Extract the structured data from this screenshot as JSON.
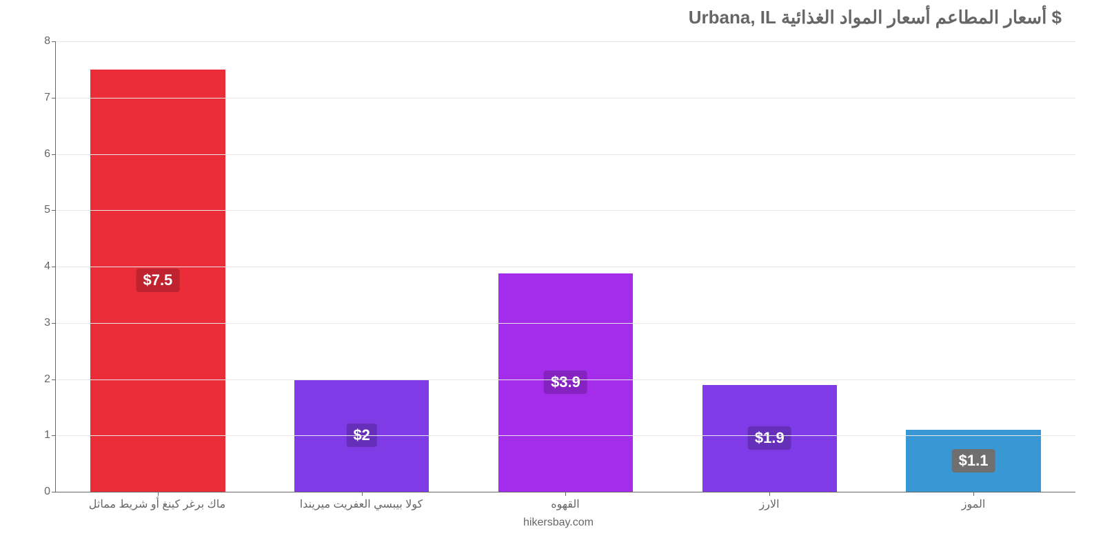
{
  "chart": {
    "type": "bar",
    "title": "$ أسعار المطاعم أسعار المواد الغذائية Urbana, IL",
    "title_fontsize": 26,
    "title_color": "#666666",
    "attribution": "hikersbay.com",
    "background_color": "#ffffff",
    "grid_color": "#e8e8e8",
    "axis_color": "#666666",
    "label_fontsize": 16,
    "label_color": "#666666",
    "y_axis": {
      "min": 0,
      "max": 8,
      "tick_step": 1,
      "ticks": [
        "0",
        "1",
        "2",
        "3",
        "4",
        "5",
        "6",
        "7",
        "8"
      ]
    },
    "badge_fontsize": 22,
    "badge_text_color": "#ffffff",
    "bar_width_ratio": 0.66,
    "bars": [
      {
        "category": "ماك برغر كينغ أو شريط مماثل",
        "value": 7.5,
        "display_value": "$7.5",
        "bar_color": "#eb2d3a",
        "badge_color": "#bf232f"
      },
      {
        "category": "كولا بيبسي العفريت ميريندا",
        "value": 2.0,
        "display_value": "$2",
        "bar_color": "#7f3be6",
        "badge_color": "#652fba"
      },
      {
        "category": "القهوه",
        "value": 3.88,
        "display_value": "$3.9",
        "bar_color": "#a42ceb",
        "badge_color": "#8423bf"
      },
      {
        "category": "الارز",
        "value": 1.9,
        "display_value": "$1.9",
        "bar_color": "#7f3be6",
        "badge_color": "#652fba"
      },
      {
        "category": "الموز",
        "value": 1.1,
        "display_value": "$1.1",
        "bar_color": "#3997d4",
        "badge_color": "#6f6f6f"
      }
    ]
  }
}
